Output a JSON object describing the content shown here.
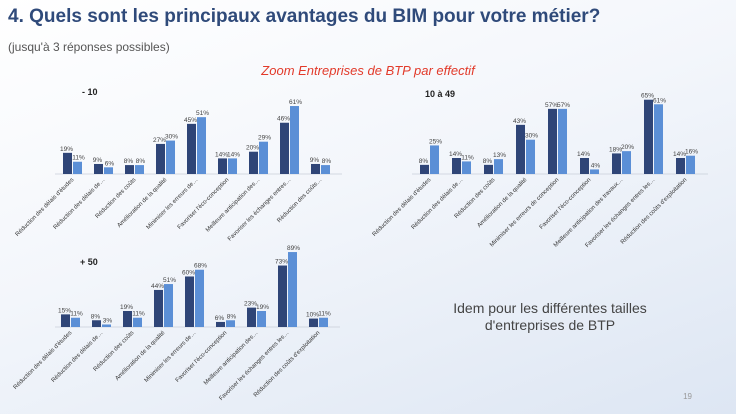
{
  "title": "4. Quels sont les principaux avantages du BIM pour votre métier?",
  "subtitle": "(jusqu'à 3 réponses possibles)",
  "zoom_title": "Zoom Entreprises de BTP par effectif",
  "note": "Idem pour les différentes tailles d'entreprises de BTP",
  "page_number": "19",
  "colors": {
    "series_1": "#2f4577",
    "series_2": "#5b8fd6"
  },
  "chart_data": [
    {
      "type": "bar",
      "title": "- 10",
      "categories": [
        "Réduction des délais d'études",
        "Réduction des délais de…",
        "Réduction des coûts",
        "Amélioration de la qualité",
        "Minimiser les erreurs de…",
        "Favoriser l'éco-conception",
        "Meilleure anticipation des…",
        "Favoriser les échanges entres…",
        "Réduction des coûts…"
      ],
      "series": [
        {
          "values": [
            19,
            9,
            8,
            27,
            45,
            14,
            20,
            46,
            9
          ]
        },
        {
          "values": [
            11,
            6,
            8,
            30,
            51,
            14,
            29,
            61,
            8
          ]
        }
      ]
    },
    {
      "type": "bar",
      "title": "10 à 49",
      "categories": [
        "Réduction des délais d'études",
        "Réduction des délais de…",
        "Réduction des coûts",
        "Amélioration de la qualité",
        "Minimiser les erreurs de conception",
        "Favoriser l'éco-conception",
        "Meilleure anticipation des travaux…",
        "Favoriser les échanges entres les…",
        "Réduction des coûts d'exploitation"
      ],
      "series": [
        {
          "values": [
            8,
            14,
            8,
            43,
            57,
            14,
            18,
            65,
            14
          ]
        },
        {
          "values": [
            25,
            11,
            13,
            30,
            57,
            4,
            20,
            61,
            16
          ]
        }
      ]
    },
    {
      "type": "bar",
      "title": "+ 50",
      "categories": [
        "Réduction des délais d'études",
        "Réduction des délais de…",
        "Réduction des coûts",
        "Amélioration de la qualité",
        "Minimiser les erreurs de…",
        "Favoriser l'éco-conception",
        "Meilleure anticipation des…",
        "Favoriser les échanges entres les…",
        "Réduction des coûts d'exploitation"
      ],
      "series": [
        {
          "values": [
            15,
            8,
            19,
            44,
            60,
            6,
            23,
            73,
            10
          ]
        },
        {
          "values": [
            11,
            3,
            11,
            51,
            68,
            8,
            19,
            89,
            11
          ]
        }
      ]
    }
  ]
}
